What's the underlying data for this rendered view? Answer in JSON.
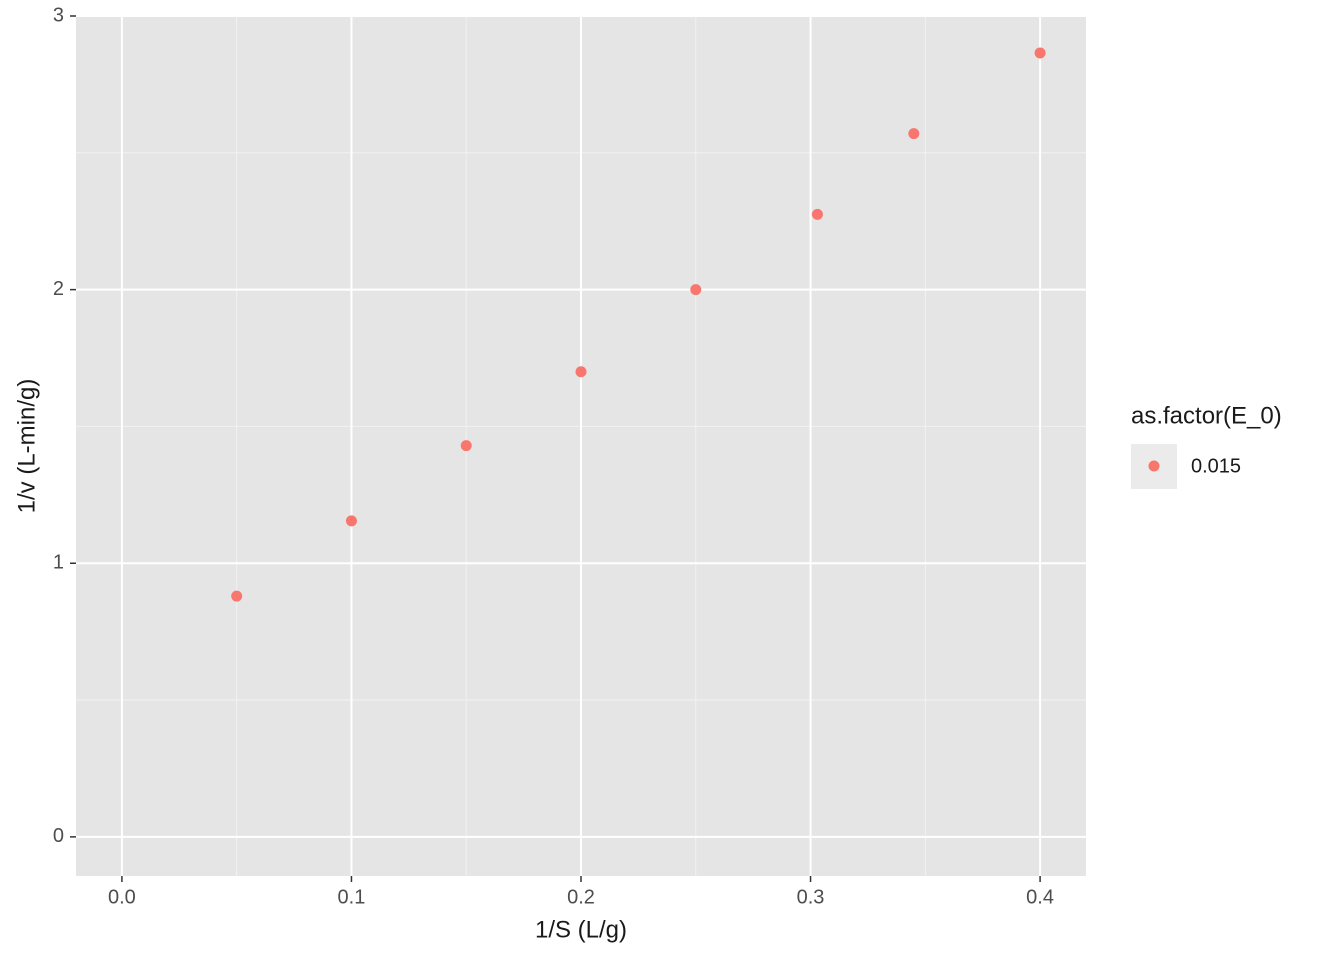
{
  "chart_data": {
    "type": "scatter",
    "x_label": "1/S (L/g)",
    "y_label": "1/v (L-min/g)",
    "legend_title": "as.factor(E_0)",
    "legend_position": "right",
    "series": [
      {
        "name": "0.015",
        "color": "#F8766D",
        "x": [
          0.05,
          0.1,
          0.15,
          0.2,
          0.25,
          0.303,
          0.345,
          0.4
        ],
        "values": [
          0.88,
          1.155,
          1.43,
          1.7,
          2.0,
          2.275,
          2.57,
          2.865
        ]
      }
    ],
    "xlim": [
      -0.02,
      0.42
    ],
    "xticks": [
      {
        "value": 0,
        "label": "0.0"
      },
      0.1,
      0.2,
      0.3,
      0.4
    ],
    "ylim": [
      -0.143,
      3.0
    ],
    "yticks": [
      0,
      1,
      2,
      3
    ],
    "grid": true
  }
}
